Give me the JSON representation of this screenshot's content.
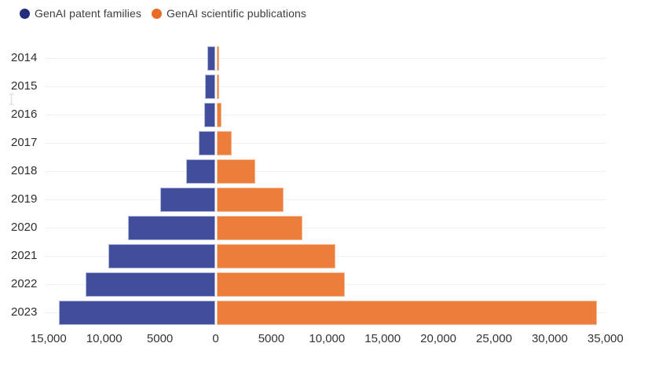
{
  "legend": {
    "items": [
      {
        "label": "GenAI patent families",
        "color": "#252E7D"
      },
      {
        "label": "GenAI scientific publications",
        "color": "#E96B26"
      }
    ]
  },
  "chart_data": {
    "type": "bar",
    "variant": "horizontal-diverging-pyramid",
    "title": "",
    "xlabel": "",
    "ylabel": "",
    "categories": [
      "2014",
      "2015",
      "2016",
      "2017",
      "2018",
      "2019",
      "2020",
      "2021",
      "2022",
      "2023"
    ],
    "series": [
      {
        "name": "GenAI patent families",
        "direction": "left",
        "color": "#414E9B",
        "border_color": "#A9B2D8",
        "values": [
          730,
          930,
          1040,
          1540,
          2620,
          4950,
          7880,
          9650,
          11650,
          14080
        ]
      },
      {
        "name": "GenAI scientific publications",
        "direction": "right",
        "color": "#ED7D3B",
        "border_color": "#F4BA92",
        "values": [
          240,
          230,
          480,
          1400,
          3500,
          6000,
          7740,
          10690,
          11550,
          34160
        ]
      }
    ],
    "x_axis": {
      "range": [
        -15000,
        35000
      ],
      "tick_values": [
        -15000,
        -10000,
        -5000,
        0,
        5000,
        10000,
        15000,
        20000,
        25000,
        30000,
        35000
      ],
      "tick_labels": [
        "15,000",
        "10,000",
        "5000",
        "0",
        "5000",
        "10,000",
        "15,000",
        "20,000",
        "25,000",
        "30,000",
        "35,000"
      ]
    },
    "grid": "horizontal category gridlines only",
    "legend_position": "top-left"
  }
}
